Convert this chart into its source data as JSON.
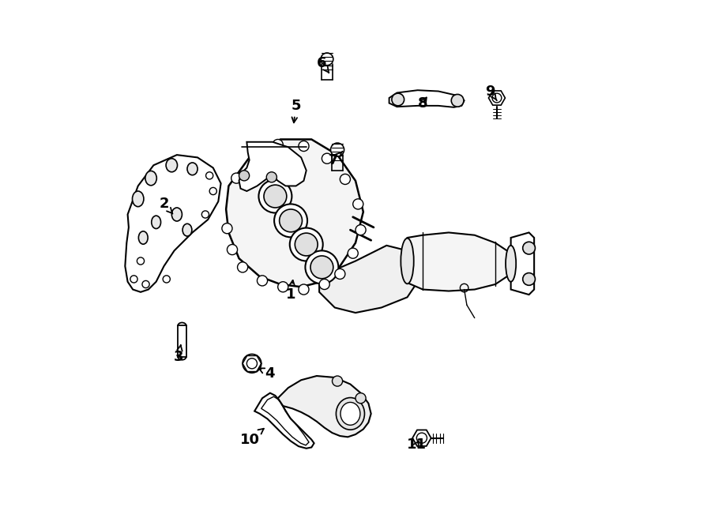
{
  "title": "",
  "background_color": "#ffffff",
  "line_color": "#000000",
  "label_color": "#000000",
  "figsize": [
    9.0,
    6.61
  ],
  "dpi": 100
}
